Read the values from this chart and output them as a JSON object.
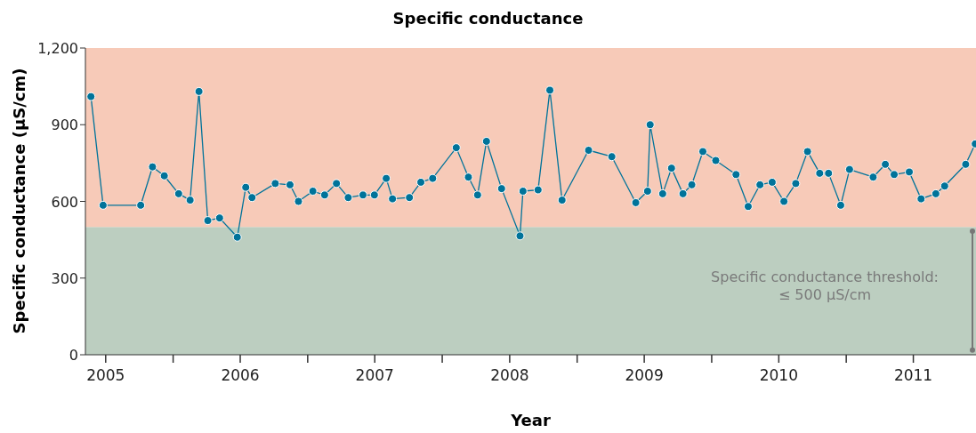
{
  "chart_data": {
    "type": "line",
    "title": "Specific conductance",
    "xlabel": "Year",
    "ylabel": "Specific conductance (µS/cm)",
    "x": [
      "2005-05-23",
      "2005-06-25",
      "2005-10-05",
      "2005-11-06",
      "2005-12-08",
      "2006-01-16",
      "2006-02-16",
      "2006-03-12",
      "2006-04-05",
      "2006-05-07",
      "2006-06-24",
      "2006-07-17",
      "2006-08-03",
      "2006-10-05",
      "2006-11-14",
      "2006-12-07",
      "2007-01-15",
      "2007-02-16",
      "2007-03-20",
      "2007-04-21",
      "2007-05-31",
      "2007-07-01",
      "2007-08-02",
      "2007-08-19",
      "2007-10-04",
      "2007-11-04",
      "2007-12-06",
      "2008-02-08",
      "2008-03-12",
      "2008-04-06",
      "2008-04-30",
      "2008-06-10",
      "2008-07-30",
      "2008-08-07",
      "2008-09-17",
      "2008-10-19",
      "2008-11-21",
      "2009-02-01",
      "2009-04-05",
      "2009-06-09",
      "2009-07-11",
      "2009-07-18",
      "2009-08-21",
      "2009-09-14",
      "2009-10-15",
      "2009-11-08",
      "2009-12-08",
      "2010-01-12",
      "2010-03-08",
      "2010-04-10",
      "2010-05-12",
      "2010-06-14",
      "2010-07-16",
      "2010-08-17",
      "2010-09-18",
      "2010-10-21",
      "2010-11-14",
      "2010-12-17",
      "2011-01-10",
      "2011-03-15",
      "2011-04-17",
      "2011-05-11",
      "2011-06-21",
      "2011-07-23",
      "2011-09-01",
      "2011-09-25",
      "2011-11-21",
      "2011-12-17"
    ],
    "series": [
      {
        "color": "#00739a",
        "values": [
          1010,
          585,
          585,
          735,
          700,
          630,
          605,
          1030,
          525,
          535,
          460,
          655,
          615,
          670,
          665,
          600,
          640,
          625,
          670,
          615,
          625,
          625,
          690,
          610,
          615,
          675,
          690,
          810,
          695,
          625,
          835,
          650,
          465,
          640,
          645,
          1035,
          605,
          800,
          775,
          595,
          640,
          900,
          630,
          730,
          630,
          665,
          795,
          760,
          705,
          580,
          665,
          675,
          600,
          670,
          795,
          710,
          710,
          585,
          725,
          695,
          745,
          705,
          715,
          610,
          630,
          660,
          745,
          825
        ]
      }
    ],
    "xlim": [
      "2005-05-08",
      "2011-12-19"
    ],
    "xticks": [
      {
        "value": "2005-07-02",
        "label": "2005"
      },
      {
        "value": "2006-01-01",
        "label": null
      },
      {
        "value": "2006-07-02",
        "label": "2006"
      },
      {
        "value": "2007-01-01",
        "label": null
      },
      {
        "value": "2007-07-02",
        "label": "2007"
      },
      {
        "value": "2008-01-01",
        "label": null
      },
      {
        "value": "2008-07-02",
        "label": "2008"
      },
      {
        "value": "2009-01-01",
        "label": null
      },
      {
        "value": "2009-07-02",
        "label": "2009"
      },
      {
        "value": "2010-01-01",
        "label": null
      },
      {
        "value": "2010-07-02",
        "label": "2010"
      },
      {
        "value": "2011-01-01",
        "label": null
      },
      {
        "value": "2011-07-02",
        "label": "2011"
      }
    ],
    "ylim": [
      0,
      1200
    ],
    "yticks": [
      0,
      300,
      600,
      900,
      {
        "value": 1200,
        "label": "1,200"
      }
    ],
    "bands": [
      {
        "axis": "y",
        "from": 0,
        "to": 500,
        "label": "Specific conductance threshold:\n≤ 500 µS/cm",
        "color": "#bccec0"
      },
      {
        "axis": "y",
        "from": 500,
        "to": 1200,
        "color": "#f7cab8"
      }
    ],
    "grid": false,
    "legend": false,
    "marker": "circle",
    "line_style": "solid"
  }
}
